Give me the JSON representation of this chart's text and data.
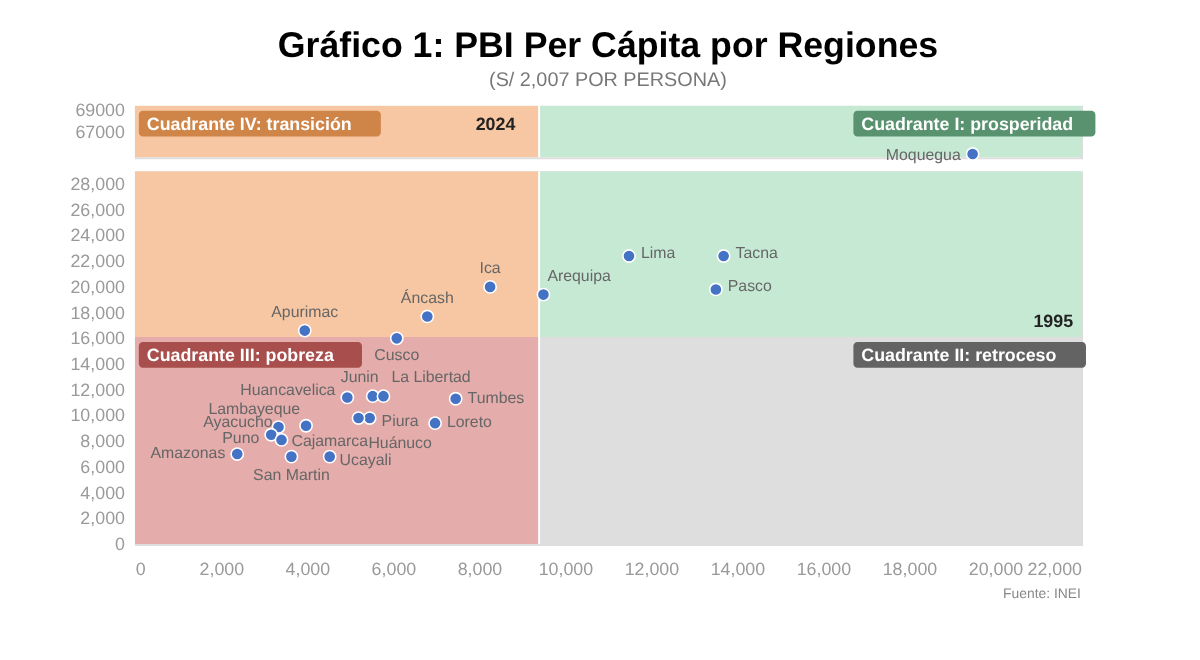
{
  "chart_data": [
    {
      "type": "scatter",
      "title": "Gráfico 1: PBI Per Cápita por Regiones",
      "subtitle": "(S/ 2,007 POR PERSONA)",
      "x": [
        19480
      ],
      "series": [
        {
          "color": "#4472c4",
          "values": [
            65000
          ],
          "value_labels": [
            "Moquegua"
          ]
        }
      ],
      "marker": "circle",
      "xlim": [
        0,
        22000
      ],
      "ylim": [
        64700,
        69400
      ],
      "yticks": [
        67000,
        69000
      ],
      "tick_labels": "y",
      "ref_lines": [
        {
          "axis": "x",
          "value": 9400,
          "color": "#ffffff"
        }
      ],
      "bands": [
        {
          "axis": "y",
          "from": 64700,
          "to": 69400,
          "label": "Cuadrante IV: transición",
          "color": "#f6c7a2"
        },
        {
          "axis": "y",
          "from": 64700,
          "to": 69400,
          "label": "Cuadrante I: prosperidad",
          "color": "#c5e9d3"
        }
      ],
      "annotations": [
        "2024"
      ]
    },
    {
      "type": "scatter",
      "x": [
        3950,
        6090,
        6800,
        8260,
        9500,
        11490,
        13690,
        13510,
        4940,
        5530,
        5780,
        7460,
        5460,
        5200,
        3980,
        6980,
        3340,
        3170,
        3410,
        2380,
        3640,
        4530
      ],
      "series": [
        {
          "color": "#4472c4",
          "values": [
            16600,
            16000,
            17700,
            20000,
            19400,
            22400,
            22400,
            19800,
            11400,
            11500,
            11500,
            11300,
            9800,
            9800,
            9200,
            9400,
            9100,
            8500,
            8100,
            7000,
            6800,
            6800
          ],
          "value_labels": [
            "Apurimac",
            "Cusco",
            "Áncash",
            "Ica",
            "Arequipa",
            "Lima",
            "Tacna",
            "Pasco",
            "Huancavelica",
            "Junin",
            "La Libertad",
            "Tumbes",
            "Piura",
            "Huánuco",
            "Lambayeque",
            "Loreto",
            "Ayacucho",
            "Puno",
            "Cajamarca",
            "Amazonas",
            "San Martin",
            "Ucayali"
          ]
        }
      ],
      "marker": "circle",
      "xlim": [
        0,
        22000
      ],
      "xticks": [
        0,
        {
          "value": 2000,
          "label": "2,000"
        },
        {
          "value": 4000,
          "label": "4,000"
        },
        {
          "value": 6000,
          "label": "6,000"
        },
        {
          "value": 8000,
          "label": "8,000"
        },
        {
          "value": 10000,
          "label": "10,000"
        },
        {
          "value": 12000,
          "label": "12,000"
        },
        {
          "value": 14000,
          "label": "14,000"
        },
        {
          "value": 16000,
          "label": "16,000"
        },
        {
          "value": 18000,
          "label": "18,000"
        },
        {
          "value": 20000,
          "label": "20,000"
        },
        {
          "value": 22000,
          "label": "22,000"
        }
      ],
      "ylim": [
        0,
        29000
      ],
      "yticks": [
        0,
        {
          "value": 2000,
          "label": "2,000"
        },
        {
          "value": 4000,
          "label": "4,000"
        },
        {
          "value": 6000,
          "label": "6,000"
        },
        {
          "value": 8000,
          "label": "8,000"
        },
        {
          "value": 10000,
          "label": "10,000"
        },
        {
          "value": 12000,
          "label": "12,000"
        },
        {
          "value": 14000,
          "label": "14,000"
        },
        {
          "value": 16000,
          "label": "16,000"
        },
        {
          "value": 18000,
          "label": "18,000"
        },
        {
          "value": 20000,
          "label": "20,000"
        },
        {
          "value": 22000,
          "label": "22,000"
        },
        {
          "value": 24000,
          "label": "24,000"
        },
        {
          "value": 26000,
          "label": "26,000"
        },
        {
          "value": 28000,
          "label": "28,000"
        }
      ],
      "ref_lines": [
        {
          "axis": "x",
          "value": 9400,
          "color": "#ffffff"
        }
      ],
      "bands": [
        {
          "axis": "y",
          "from": 16100,
          "to": 29000,
          "color": "#f6c7a2"
        },
        {
          "axis": "y",
          "from": 16100,
          "to": 29000,
          "color": "#c5e9d3"
        },
        {
          "axis": "y",
          "from": 0,
          "to": 16100,
          "label": "Cuadrante III: pobreza",
          "color": "#e4acab"
        },
        {
          "axis": "y",
          "from": 0,
          "to": 16100,
          "label": "Cuadrante II: retroceso",
          "color": "#dedede"
        }
      ],
      "annotations": [
        "1995",
        "Fuente: INEI"
      ]
    }
  ]
}
